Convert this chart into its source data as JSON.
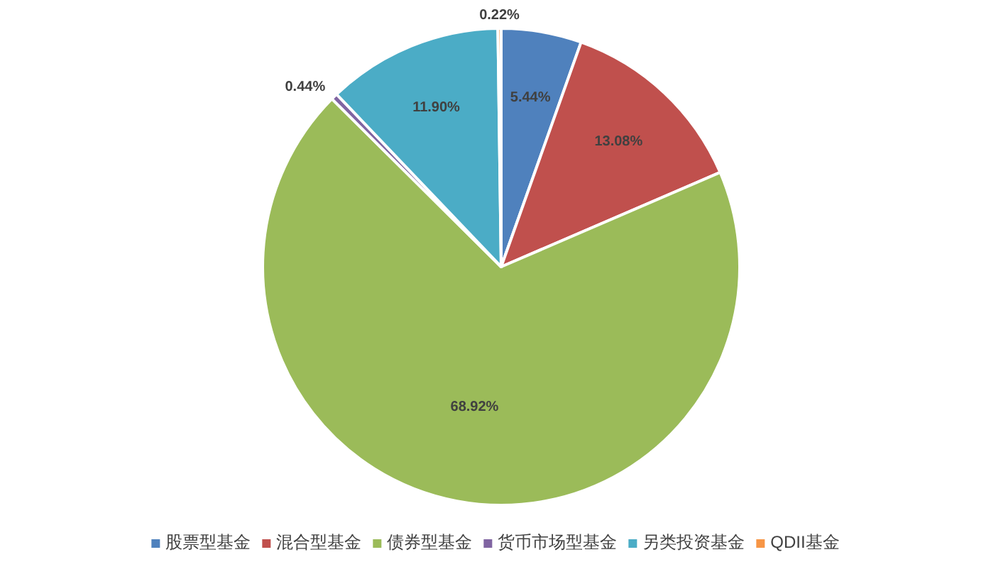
{
  "chart_data": {
    "type": "pie",
    "categories": [
      "股票型基金",
      "混合型基金",
      "债券型基金",
      "货币市场型基金",
      "另类投资基金",
      "QDII基金"
    ],
    "values": [
      5.44,
      13.08,
      68.92,
      0.44,
      11.9,
      0.22
    ],
    "colors": [
      "#4f81bd",
      "#c0504d",
      "#9bbb59",
      "#8064a2",
      "#4bacc6",
      "#f79646"
    ],
    "value_labels": [
      "5.44%",
      "13.08%",
      "68.92%",
      "0.44%",
      "11.90%",
      "0.22%"
    ],
    "legend": "bottom"
  }
}
